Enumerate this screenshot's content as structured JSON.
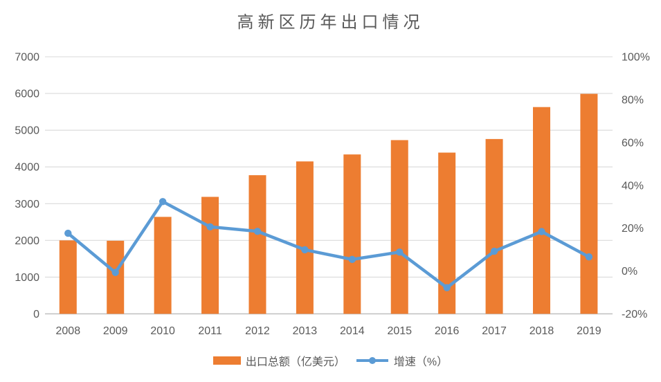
{
  "title": "高新区历年出口情况",
  "chart_data": {
    "type": "combo-bar-line",
    "title": "高新区历年出口情况",
    "categories": [
      "2008",
      "2009",
      "2010",
      "2011",
      "2012",
      "2013",
      "2014",
      "2015",
      "2016",
      "2017",
      "2018",
      "2019"
    ],
    "series": [
      {
        "name": "出口总额（亿美元）",
        "type": "bar",
        "axis": "left",
        "color": "#ED7D31",
        "values": [
          2000,
          1990,
          2640,
          3185,
          3775,
          4150,
          4340,
          4730,
          4390,
          4760,
          5630,
          5990
        ]
      },
      {
        "name": "增速（%）",
        "type": "line",
        "axis": "right",
        "color": "#5B9BD5",
        "values": [
          17.6,
          -0.7,
          32.4,
          20.6,
          18.5,
          9.9,
          5.4,
          8.8,
          -7.8,
          9.2,
          18.4,
          6.6
        ]
      }
    ],
    "left_axis": {
      "min": 0,
      "max": 7000,
      "step": 1000,
      "ticks": [
        "0",
        "1000",
        "2000",
        "3000",
        "4000",
        "5000",
        "6000",
        "7000"
      ]
    },
    "right_axis": {
      "min": -20,
      "max": 100,
      "step": 20,
      "ticks": [
        "-20%",
        "0%",
        "20%",
        "40%",
        "60%",
        "80%",
        "100%"
      ]
    },
    "grid": "horizontal-only",
    "legend_position": "bottom",
    "colors": {
      "bar": "#ED7D31",
      "line": "#5B9BD5",
      "grid": "#D9D9D9",
      "axis_line": "#BFBFBF",
      "text": "#595959"
    }
  }
}
